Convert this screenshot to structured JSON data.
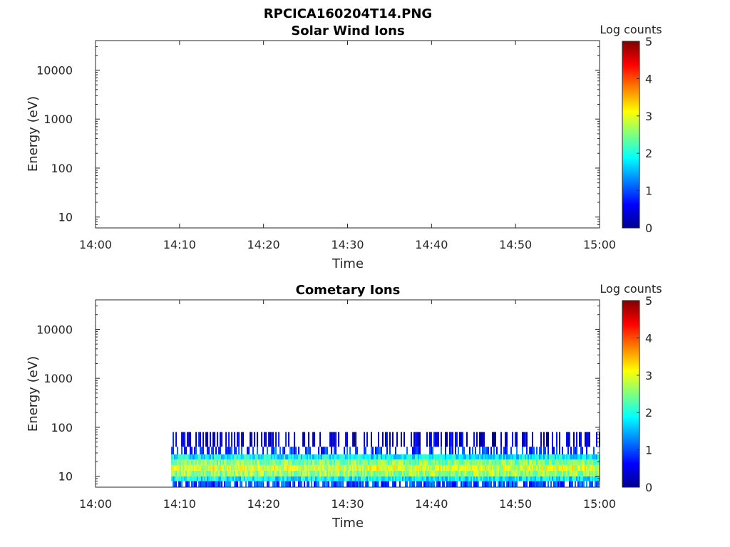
{
  "figure": {
    "title": "RPCICA160204T14.PNG"
  },
  "chart_data": [
    {
      "type": "heatmap",
      "title": "Solar Wind Ions",
      "xlabel": "Time",
      "ylabel": "Energy (eV)",
      "x_ticks": [
        "14:00",
        "14:10",
        "14:20",
        "14:30",
        "14:40",
        "14:50",
        "15:00"
      ],
      "x_range": [
        "14:00",
        "15:00"
      ],
      "y_ticks": [
        "10",
        "100",
        "1000",
        "10000"
      ],
      "y_scale": "log",
      "y_range": [
        6,
        40000
      ],
      "colorbar": {
        "label": "Log counts",
        "ticks": [
          "0",
          "1",
          "2",
          "3",
          "4",
          "5"
        ],
        "range": [
          0,
          5
        ],
        "colormap": "jet"
      },
      "data_present": false,
      "bands": []
    },
    {
      "type": "heatmap",
      "title": "Cometary Ions",
      "xlabel": "Time",
      "ylabel": "Energy (eV)",
      "x_ticks": [
        "14:00",
        "14:10",
        "14:20",
        "14:30",
        "14:40",
        "14:50",
        "15:00"
      ],
      "x_range": [
        "14:00",
        "15:00"
      ],
      "y_ticks": [
        "10",
        "100",
        "1000",
        "10000"
      ],
      "y_scale": "log",
      "y_range": [
        6,
        40000
      ],
      "colorbar": {
        "label": "Log counts",
        "ticks": [
          "0",
          "1",
          "2",
          "3",
          "4",
          "5"
        ],
        "range": [
          0,
          5
        ],
        "colormap": "jet"
      },
      "data_present": true,
      "data_start": "14:09",
      "data_end": "15:00",
      "bands": [
        {
          "e_low": 6,
          "e_high": 8,
          "level": 1.0
        },
        {
          "e_low": 8,
          "e_high": 10,
          "level": 1.8
        },
        {
          "e_low": 10,
          "e_high": 13,
          "level": 2.6
        },
        {
          "e_low": 13,
          "e_high": 17,
          "level": 2.9
        },
        {
          "e_low": 17,
          "e_high": 22,
          "level": 2.5
        },
        {
          "e_low": 22,
          "e_high": 28,
          "level": 1.8
        },
        {
          "e_low": 28,
          "e_high": 40,
          "level": 0.9
        },
        {
          "e_low": 40,
          "e_high": 80,
          "level": 0.4
        }
      ]
    }
  ]
}
